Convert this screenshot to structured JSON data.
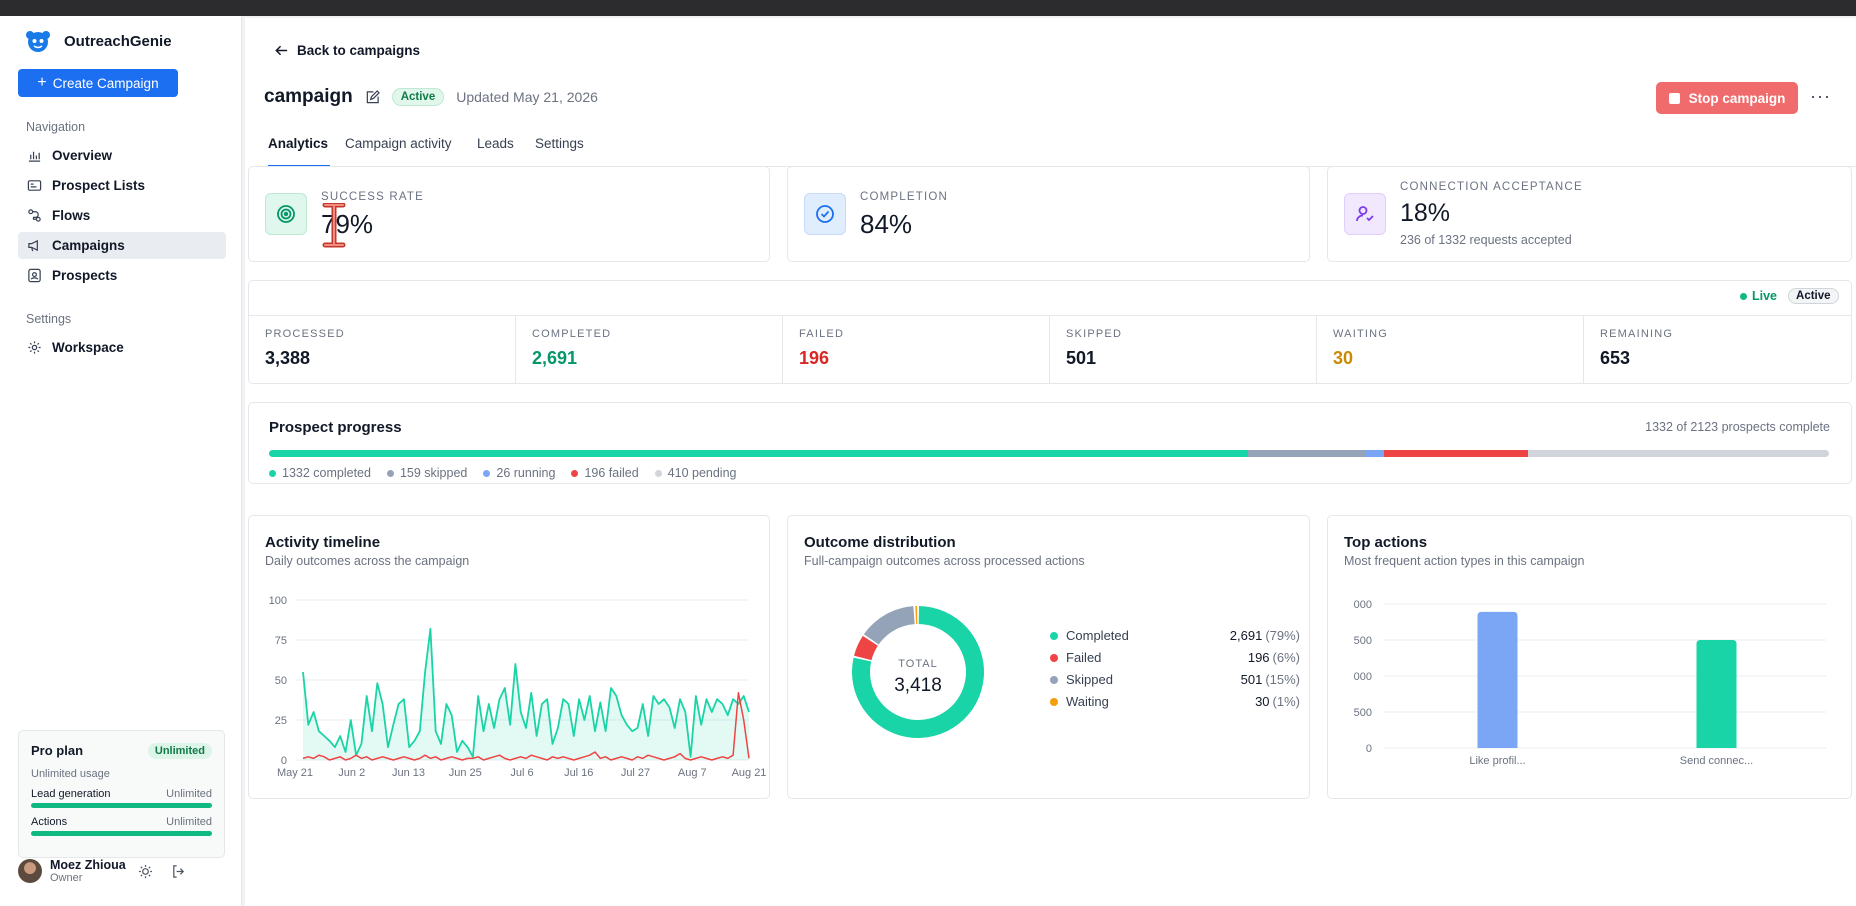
{
  "app": {
    "name": "OutreachGenie"
  },
  "sidebar": {
    "create_label": "Create Campaign",
    "nav_title": "Navigation",
    "items": [
      {
        "label": "Overview",
        "icon": "bar-chart-icon"
      },
      {
        "label": "Prospect Lists",
        "icon": "list-icon"
      },
      {
        "label": "Flows",
        "icon": "flow-icon"
      },
      {
        "label": "Campaigns",
        "icon": "megaphone-icon",
        "active": true
      },
      {
        "label": "Prospects",
        "icon": "contact-icon"
      }
    ],
    "settings_title": "Settings",
    "settings_items": [
      {
        "label": "Workspace",
        "icon": "gear-icon"
      }
    ],
    "plan": {
      "name": "Pro plan",
      "badge": "Unlimited",
      "sub": "Unlimited usage",
      "rows": [
        {
          "label": "Lead generation",
          "value": "Unlimited"
        },
        {
          "label": "Actions",
          "value": "Unlimited"
        }
      ]
    },
    "user": {
      "name": "Moez Zhioua",
      "role": "Owner"
    }
  },
  "header": {
    "back_label": "Back to campaigns",
    "title": "campaign",
    "status": "Active",
    "updated": "Updated May 21, 2026",
    "stop_label": "Stop campaign",
    "more": "···"
  },
  "tabs": [
    "Analytics",
    "Campaign activity",
    "Leads",
    "Settings"
  ],
  "kpis": [
    {
      "label": "SUCCESS RATE",
      "value": "79%",
      "icon": "target-icon"
    },
    {
      "label": "COMPLETION",
      "value": "84%",
      "icon": "check-circle-icon"
    },
    {
      "label": "CONNECTION ACCEPTANCE",
      "value": "18%",
      "sub": "236 of 1332 requests accepted",
      "icon": "user-check-icon"
    }
  ],
  "live": {
    "label": "Live",
    "status": "Active"
  },
  "stats": [
    {
      "label": "PROCESSED",
      "value": "3,388",
      "color": "#111827"
    },
    {
      "label": "COMPLETED",
      "value": "2,691",
      "color": "#059669"
    },
    {
      "label": "FAILED",
      "value": "196",
      "color": "#dc2626"
    },
    {
      "label": "SKIPPED",
      "value": "501",
      "color": "#111827"
    },
    {
      "label": "WAITING",
      "value": "30",
      "color": "#ca8a04"
    },
    {
      "label": "REMAINING",
      "value": "653",
      "color": "#111827"
    }
  ],
  "prospect_progress": {
    "title": "Prospect progress",
    "summary": "1332 of 2123 prospects complete",
    "segments": [
      {
        "label": "1332 completed",
        "value": 1332,
        "color": "#19d4a6"
      },
      {
        "label": "159 skipped",
        "value": 159,
        "color": "#94a3b8"
      },
      {
        "label": "26 running",
        "value": 26,
        "color": "#7aa6f5"
      },
      {
        "label": "196 failed",
        "value": 196,
        "color": "#ef4444"
      },
      {
        "label": "410 pending",
        "value": 410,
        "color": "#d1d5db"
      }
    ]
  },
  "activity": {
    "title": "Activity timeline",
    "subtitle": "Daily outcomes across the campaign"
  },
  "outcome": {
    "title": "Outcome distribution",
    "subtitle": "Full-campaign outcomes across processed actions",
    "total_label": "TOTAL",
    "total": "3,418",
    "rows": [
      {
        "label": "Completed",
        "value": "2,691",
        "pct": "(79%)",
        "color": "#19d4a6"
      },
      {
        "label": "Failed",
        "value": "196",
        "pct": "(6%)",
        "color": "#ef4444"
      },
      {
        "label": "Skipped",
        "value": "501",
        "pct": "(15%)",
        "color": "#94a3b8"
      },
      {
        "label": "Waiting",
        "value": "30",
        "pct": "(1%)",
        "color": "#f59e0b"
      }
    ]
  },
  "top_actions": {
    "title": "Top actions",
    "subtitle": "Most frequent action types in this campaign"
  },
  "chart_data": [
    {
      "type": "line",
      "title": "Activity timeline",
      "x_ticks": [
        "May 21",
        "Jun 2",
        "Jun 13",
        "Jun 25",
        "Jul 6",
        "Jul 16",
        "Jul 27",
        "Aug 7",
        "Aug 21"
      ],
      "ylim": [
        0,
        100
      ],
      "y_ticks": [
        0,
        25,
        50,
        75,
        100
      ],
      "grid": true,
      "series": [
        {
          "color": "#19d4a6",
          "values": [
            55,
            22,
            30,
            18,
            15,
            12,
            8,
            15,
            5,
            25,
            3,
            10,
            40,
            18,
            48,
            35,
            8,
            22,
            35,
            38,
            8,
            12,
            18,
            55,
            82,
            18,
            10,
            35,
            28,
            5,
            12,
            8,
            2,
            40,
            18,
            35,
            20,
            38,
            45,
            22,
            60,
            30,
            20,
            42,
            15,
            35,
            38,
            10,
            20,
            38,
            35,
            15,
            38,
            25,
            40,
            18,
            36,
            18,
            45,
            40,
            28,
            22,
            18,
            20,
            35,
            15,
            40,
            35,
            38,
            33,
            20,
            38,
            30,
            2,
            40,
            22,
            38,
            30,
            38,
            35,
            28,
            38,
            35,
            40,
            30
          ]
        },
        {
          "color": "#ef4444",
          "values": [
            1,
            2,
            1,
            3,
            2,
            0,
            1,
            2,
            0,
            1,
            3,
            1,
            2,
            0,
            1,
            2,
            1,
            0,
            1,
            2,
            1,
            0,
            1,
            3,
            1,
            2,
            0,
            1,
            2,
            1,
            0,
            1,
            1,
            2,
            0,
            1,
            2,
            3,
            1,
            0,
            1,
            2,
            1,
            3,
            2,
            1,
            0,
            2,
            1,
            2,
            1,
            0,
            1,
            2,
            3,
            5,
            1,
            2,
            0,
            1,
            2,
            1,
            0,
            2,
            1,
            3,
            2,
            1,
            0,
            1,
            2,
            4,
            1,
            0,
            1,
            2,
            1,
            0,
            1,
            2,
            1,
            3,
            42,
            25,
            1
          ]
        }
      ]
    },
    {
      "type": "pie",
      "title": "Outcome distribution",
      "series": [
        {
          "name": "Completed",
          "value": 2691
        },
        {
          "name": "Failed",
          "value": 196
        },
        {
          "name": "Skipped",
          "value": 501
        },
        {
          "name": "Waiting",
          "value": 30
        }
      ]
    },
    {
      "type": "bar",
      "title": "Top actions",
      "categories": [
        "Like profil...",
        "Send connec..."
      ],
      "values": [
        1890,
        1500
      ],
      "colors": [
        "#7aa6f5",
        "#19d4a6"
      ],
      "y_ticks": [
        "0",
        "500",
        "000",
        "500",
        "000"
      ],
      "ylim": [
        0,
        2000
      ]
    }
  ]
}
